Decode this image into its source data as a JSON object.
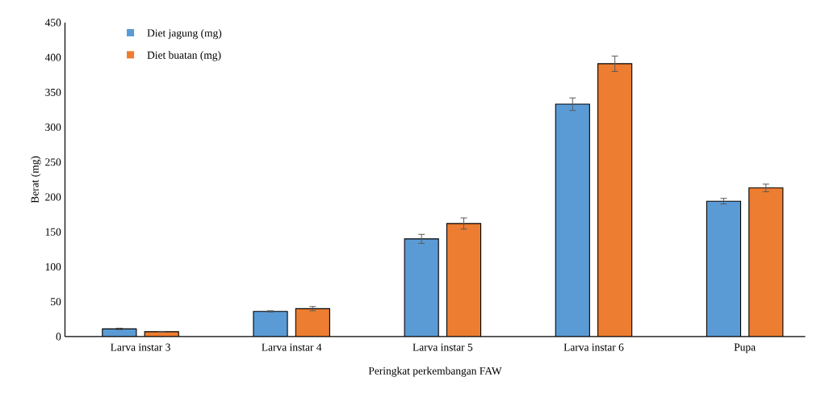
{
  "chart_data": {
    "type": "bar",
    "xlabel": "Peringkat perkembangan FAW",
    "ylabel": "Berat (mg)",
    "categories": [
      "Larva instar 3",
      "Larva instar 4",
      "Larva instar 5",
      "Larva instar 6",
      "Pupa"
    ],
    "series": [
      {
        "name": "Diet jagung (mg)",
        "color": "#5b9bd5",
        "values": [
          11,
          36,
          140,
          333,
          194
        ],
        "errors": [
          1,
          1,
          6.5,
          9,
          4
        ]
      },
      {
        "name": "Diet buatan (mg)",
        "color": "#ed7d31",
        "values": [
          7,
          40,
          162,
          391,
          213
        ],
        "errors": [
          0.5,
          3,
          8,
          11,
          5.5
        ]
      }
    ],
    "ylim": [
      0,
      450
    ],
    "yticks": [
      0,
      50,
      100,
      150,
      200,
      250,
      300,
      350,
      400,
      450
    ],
    "legend": "top left",
    "grid": false
  }
}
